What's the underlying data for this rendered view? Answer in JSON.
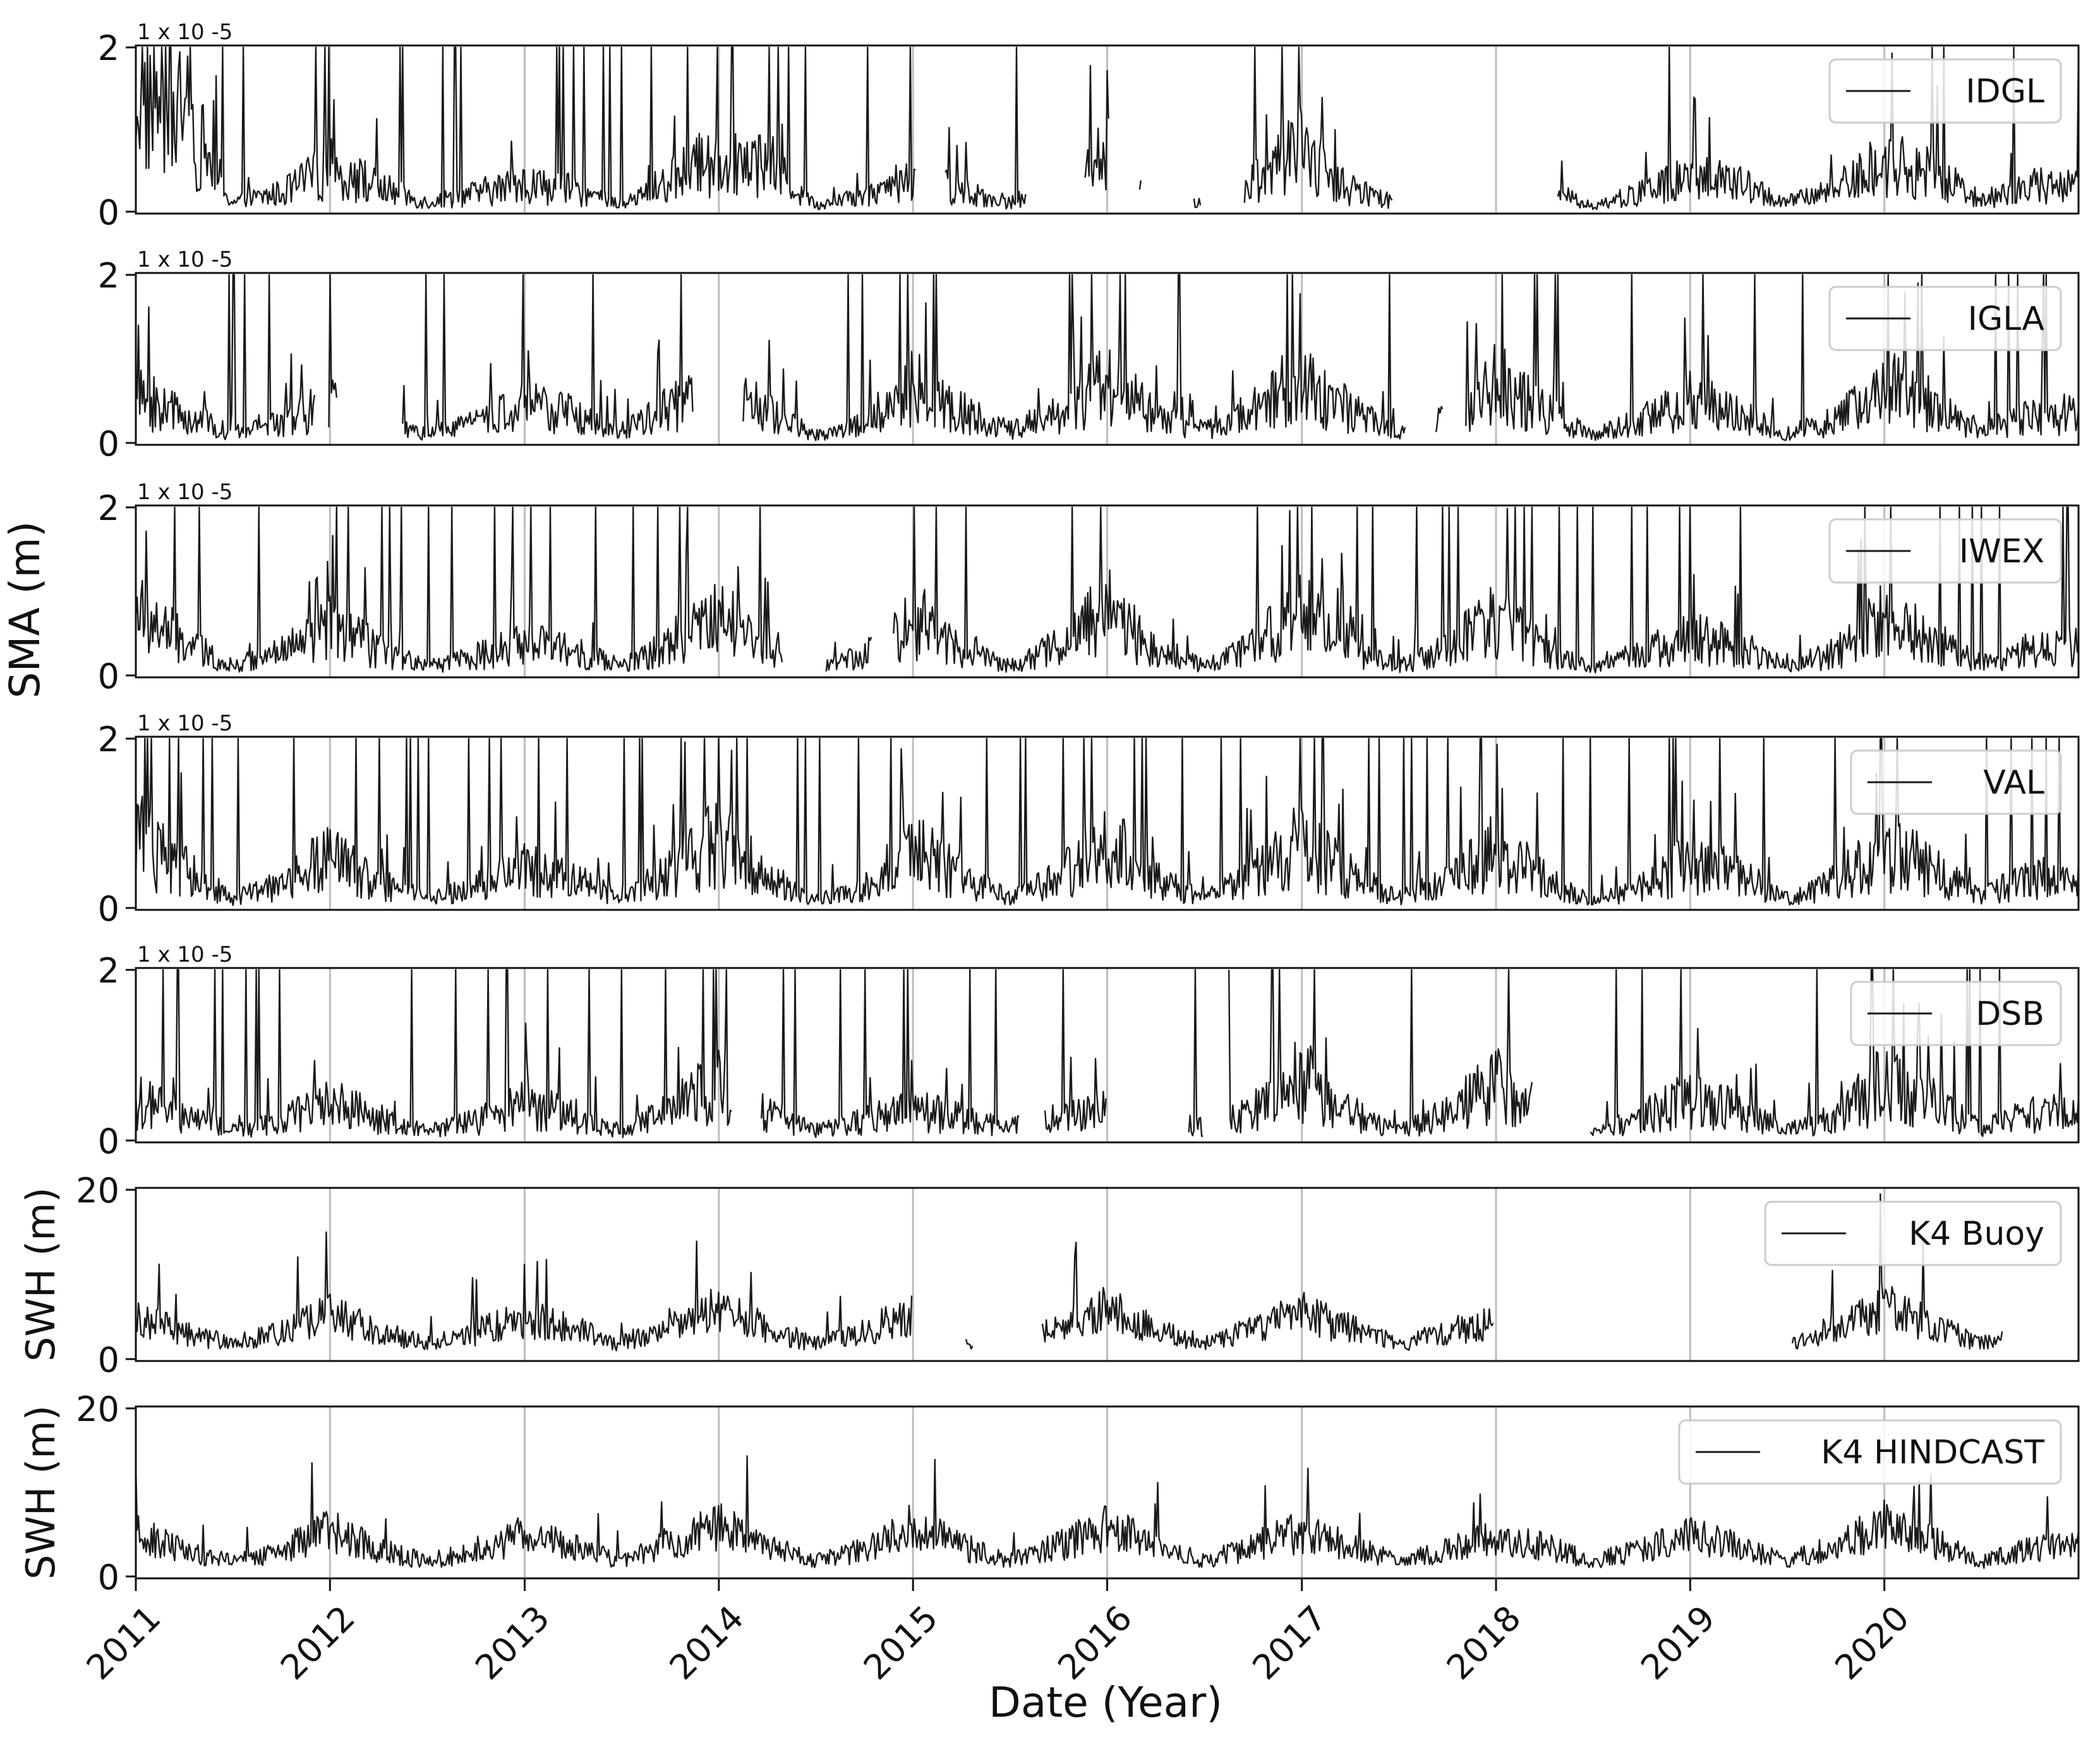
{
  "figure": {
    "xlabel": "Date (Year)",
    "year_ticks": [
      "2011",
      "2012",
      "2013",
      "2014",
      "2015",
      "2016",
      "2017",
      "2018",
      "2019",
      "2020"
    ],
    "sma_shared_ylabel": "SMA (m)"
  },
  "chart_data": [
    {
      "type": "line",
      "title": "",
      "xlabel": "",
      "ylabel": "",
      "multiplier_label": "1 x 10 -5",
      "ylim": [
        0,
        2
      ],
      "yticks": [
        "0",
        "2"
      ],
      "xlim": [
        "2011-01-01",
        "2020-12-31"
      ],
      "grid": "vertical-at-years",
      "legend_position": "top-right",
      "series": [
        {
          "name": "IDGL",
          "color": "#1a1a1a",
          "gaps": [
            [
              "2015-01-08",
              "2015-03-01"
            ],
            [
              "2015-08-01",
              "2015-11-20"
            ],
            [
              "2016-01-05",
              "2016-03-01"
            ],
            [
              "2016-03-05",
              "2016-06-10"
            ],
            [
              "2016-06-25",
              "2016-09-15"
            ],
            [
              "2017-06-20",
              "2018-04-25"
            ]
          ],
          "x": [
            "2011-01",
            "2011-04",
            "2011-07",
            "2011-10",
            "2012-01",
            "2012-04",
            "2012-07",
            "2012-10",
            "2013-01",
            "2013-04",
            "2013-07",
            "2013-10",
            "2014-01",
            "2014-04",
            "2014-07",
            "2014-10",
            "2015-01",
            "2015-04",
            "2015-07",
            "2015-10",
            "2016-01",
            "2016-04",
            "2016-07",
            "2016-10",
            "2017-01",
            "2017-04",
            "2017-07",
            "2017-10",
            "2018-01",
            "2018-04",
            "2018-07",
            "2018-10",
            "2019-01",
            "2019-04",
            "2019-07",
            "2019-10",
            "2020-01",
            "2020-04",
            "2020-07",
            "2020-10",
            "2020-12"
          ],
          "y": [
            2.0,
            1.6,
            0.15,
            0.3,
            0.7,
            0.4,
            0.15,
            0.3,
            0.45,
            0.35,
            0.12,
            0.5,
            0.9,
            0.8,
            0.1,
            0.25,
            0.6,
            0.35,
            0.15,
            0.35,
            0.9,
            0.2,
            0.15,
            0.5,
            1.0,
            0.35,
            0.15,
            0.3,
            0.5,
            0.35,
            0.1,
            0.3,
            0.55,
            0.45,
            0.15,
            0.35,
            0.8,
            0.6,
            0.2,
            0.4,
            0.45
          ]
        }
      ]
    },
    {
      "type": "line",
      "title": "",
      "xlabel": "",
      "ylabel": "",
      "multiplier_label": "1 x 10 -5",
      "ylim": [
        0,
        2
      ],
      "yticks": [
        "0",
        "2"
      ],
      "xlim": [
        "2011-01-01",
        "2020-12-31"
      ],
      "grid": "vertical-at-years",
      "legend_position": "top-right",
      "series": [
        {
          "name": "IGLA",
          "color": "#1a1a1a",
          "gaps": [
            [
              "2011-12-05",
              "2011-12-28"
            ],
            [
              "2012-01-15",
              "2012-05-15"
            ],
            [
              "2013-11-15",
              "2014-02-15"
            ],
            [
              "2017-07-15",
              "2017-09-10"
            ],
            [
              "2017-09-25",
              "2017-11-05"
            ]
          ],
          "x": [
            "2011-01",
            "2011-04",
            "2011-07",
            "2011-10",
            "2012-01",
            "2012-04",
            "2012-07",
            "2012-10",
            "2013-01",
            "2013-04",
            "2013-07",
            "2013-10",
            "2014-01",
            "2014-04",
            "2014-07",
            "2014-10",
            "2015-01",
            "2015-04",
            "2015-07",
            "2015-10",
            "2016-01",
            "2016-04",
            "2016-07",
            "2016-10",
            "2017-01",
            "2017-04",
            "2017-07",
            "2017-10",
            "2018-01",
            "2018-04",
            "2018-07",
            "2018-10",
            "2019-01",
            "2019-04",
            "2019-07",
            "2019-10",
            "2020-01",
            "2020-04",
            "2020-07",
            "2020-10",
            "2020-12"
          ],
          "y": [
            0.7,
            0.45,
            0.15,
            0.35,
            0.6,
            0.35,
            0.15,
            0.3,
            0.6,
            0.45,
            0.2,
            0.55,
            0.8,
            0.5,
            0.12,
            0.3,
            0.9,
            0.5,
            0.2,
            0.45,
            1.0,
            0.4,
            0.2,
            0.5,
            1.0,
            0.5,
            0.15,
            0.4,
            0.95,
            0.5,
            0.12,
            0.35,
            0.7,
            0.45,
            0.15,
            0.35,
            0.9,
            0.6,
            0.2,
            0.4,
            0.45
          ]
        }
      ]
    },
    {
      "type": "line",
      "title": "",
      "xlabel": "",
      "ylabel": "",
      "multiplier_label": "1 x 10 -5",
      "ylim": [
        0,
        2
      ],
      "yticks": [
        "0",
        "2"
      ],
      "xlim": [
        "2011-01-01",
        "2020-12-31"
      ],
      "grid": "vertical-at-years",
      "legend_position": "top-right",
      "series": [
        {
          "name": "IWEX",
          "color": "#1a1a1a",
          "gaps": [
            [
              "2014-05-01",
              "2014-07-20"
            ],
            [
              "2014-10-15",
              "2014-11-25"
            ]
          ],
          "x": [
            "2011-01",
            "2011-04",
            "2011-07",
            "2011-10",
            "2012-01",
            "2012-04",
            "2012-07",
            "2012-10",
            "2013-01",
            "2013-04",
            "2013-07",
            "2013-10",
            "2014-01",
            "2014-04",
            "2014-07",
            "2014-10",
            "2015-01",
            "2015-04",
            "2015-07",
            "2015-10",
            "2016-01",
            "2016-04",
            "2016-07",
            "2016-10",
            "2017-01",
            "2017-04",
            "2017-07",
            "2017-10",
            "2018-01",
            "2018-04",
            "2018-07",
            "2018-10",
            "2019-01",
            "2019-04",
            "2019-07",
            "2019-10",
            "2020-01",
            "2020-04",
            "2020-07",
            "2020-10",
            "2020-12"
          ],
          "y": [
            1.0,
            0.5,
            0.15,
            0.35,
            0.75,
            0.4,
            0.15,
            0.3,
            0.5,
            0.4,
            0.15,
            0.5,
            0.9,
            0.5,
            0.12,
            0.3,
            0.9,
            0.45,
            0.15,
            0.45,
            1.0,
            0.4,
            0.15,
            0.45,
            1.0,
            0.45,
            0.15,
            0.4,
            0.9,
            0.4,
            0.1,
            0.35,
            0.6,
            0.45,
            0.15,
            0.35,
            0.9,
            0.55,
            0.2,
            0.4,
            0.45
          ]
        }
      ]
    },
    {
      "type": "line",
      "title": "",
      "xlabel": "",
      "ylabel": "",
      "multiplier_label": "1 x 10 -5",
      "ylim": [
        0,
        2
      ],
      "yticks": [
        "0",
        "2"
      ],
      "xlim": [
        "2011-01-01",
        "2020-12-31"
      ],
      "grid": "vertical-at-years",
      "legend_position": "top-right",
      "series": [
        {
          "name": "VAL",
          "color": "#1a1a1a",
          "gaps": [],
          "x": [
            "2011-01",
            "2011-04",
            "2011-07",
            "2011-10",
            "2012-01",
            "2012-04",
            "2012-07",
            "2012-10",
            "2013-01",
            "2013-04",
            "2013-07",
            "2013-10",
            "2014-01",
            "2014-04",
            "2014-07",
            "2014-10",
            "2015-01",
            "2015-04",
            "2015-07",
            "2015-10",
            "2016-01",
            "2016-04",
            "2016-07",
            "2016-10",
            "2017-01",
            "2017-04",
            "2017-07",
            "2017-10",
            "2018-01",
            "2018-04",
            "2018-07",
            "2018-10",
            "2019-01",
            "2019-04",
            "2019-07",
            "2019-10",
            "2020-01",
            "2020-04",
            "2020-07",
            "2020-10",
            "2020-12"
          ],
          "y": [
            1.1,
            0.6,
            0.15,
            0.35,
            0.8,
            0.4,
            0.15,
            0.35,
            0.6,
            0.45,
            0.15,
            0.55,
            1.1,
            0.5,
            0.12,
            0.3,
            0.9,
            0.5,
            0.15,
            0.45,
            1.0,
            0.45,
            0.15,
            0.5,
            1.0,
            0.5,
            0.15,
            0.4,
            0.9,
            0.45,
            0.1,
            0.35,
            0.7,
            0.5,
            0.15,
            0.4,
            0.9,
            0.6,
            0.2,
            0.45,
            0.5
          ]
        }
      ]
    },
    {
      "type": "line",
      "title": "",
      "xlabel": "",
      "ylabel": "",
      "multiplier_label": "1 x 10 -5",
      "ylim": [
        0,
        2
      ],
      "yticks": [
        "0",
        "2"
      ],
      "xlim": [
        "2011-01-01",
        "2020-12-31"
      ],
      "grid": "vertical-at-years",
      "legend_position": "top-right",
      "series": [
        {
          "name": "DSB",
          "color": "#1a1a1a",
          "gaps": [
            [
              "2014-01-25",
              "2014-03-20"
            ],
            [
              "2015-07-20",
              "2015-09-05"
            ],
            [
              "2016-01-01",
              "2016-06-01"
            ],
            [
              "2016-07-01",
              "2016-08-15"
            ],
            [
              "2018-03-10",
              "2018-06-25"
            ]
          ],
          "x": [
            "2011-01",
            "2011-04",
            "2011-07",
            "2011-10",
            "2012-01",
            "2012-04",
            "2012-07",
            "2012-10",
            "2013-01",
            "2013-04",
            "2013-07",
            "2013-10",
            "2014-01",
            "2014-04",
            "2014-07",
            "2014-10",
            "2015-01",
            "2015-04",
            "2015-07",
            "2015-10",
            "2016-01",
            "2016-04",
            "2016-07",
            "2016-10",
            "2017-01",
            "2017-04",
            "2017-07",
            "2017-10",
            "2018-01",
            "2018-04",
            "2018-07",
            "2018-10",
            "2019-01",
            "2019-04",
            "2019-07",
            "2019-10",
            "2020-01",
            "2020-04",
            "2020-07",
            "2020-10",
            "2020-12"
          ],
          "y": [
            0.6,
            0.4,
            0.15,
            0.3,
            0.6,
            0.35,
            0.15,
            0.3,
            0.55,
            0.4,
            0.15,
            0.45,
            0.9,
            0.45,
            0.15,
            0.3,
            0.5,
            0.35,
            0.2,
            0.35,
            0.5,
            0.3,
            0.2,
            0.45,
            1.0,
            0.45,
            0.15,
            0.4,
            0.9,
            0.45,
            0.12,
            0.35,
            0.65,
            0.45,
            0.15,
            0.35,
            0.9,
            0.6,
            0.2,
            0.4,
            0.45
          ]
        }
      ]
    },
    {
      "type": "line",
      "title": "",
      "xlabel": "",
      "ylabel": "SWH (m)",
      "multiplier_label": "",
      "ylim": [
        0,
        20
      ],
      "yticks": [
        "0",
        "20"
      ],
      "xlim": [
        "2011-01-01",
        "2020-12-31"
      ],
      "grid": "vertical-at-years",
      "legend_position": "top-right",
      "series": [
        {
          "name": "K4 Buoy",
          "color": "#1a1a1a",
          "gaps": [
            [
              "2014-12-31",
              "2015-04-10"
            ],
            [
              "2015-04-25",
              "2015-09-01"
            ],
            [
              "2017-12-28",
              "2019-07-10"
            ],
            [
              "2020-08-10",
              "2020-12-31"
            ]
          ],
          "x": [
            "2011-01",
            "2011-04",
            "2011-07",
            "2011-10",
            "2012-01",
            "2012-04",
            "2012-07",
            "2012-10",
            "2013-01",
            "2013-04",
            "2013-07",
            "2013-10",
            "2014-01",
            "2014-04",
            "2014-07",
            "2014-10",
            "2015-01",
            "2015-04",
            "2015-07",
            "2015-10",
            "2016-01",
            "2016-04",
            "2016-07",
            "2016-10",
            "2017-01",
            "2017-04",
            "2017-07",
            "2017-10",
            "2018-01",
            "2018-04",
            "2018-07",
            "2018-10",
            "2019-01",
            "2019-04",
            "2019-07",
            "2019-10",
            "2020-01",
            "2020-04",
            "2020-07",
            "2020-10",
            "2020-12"
          ],
          "y": [
            5.5,
            3.5,
            2.0,
            3.5,
            6.0,
            3.5,
            2.0,
            3.5,
            5.5,
            4.0,
            2.0,
            4.5,
            6.5,
            4.0,
            2.0,
            3.5,
            6.0,
            2.0,
            2.0,
            4.0,
            6.5,
            4.0,
            2.0,
            4.0,
            6.0,
            4.0,
            2.0,
            3.5,
            5.0,
            3.5,
            2.0,
            3.5,
            5.0,
            4.0,
            2.0,
            4.0,
            7.0,
            4.5,
            2.0,
            3.5,
            4.0
          ]
        }
      ]
    },
    {
      "type": "line",
      "title": "",
      "xlabel": "",
      "ylabel": "SWH (m)",
      "multiplier_label": "",
      "ylim": [
        0,
        20
      ],
      "yticks": [
        "0",
        "20"
      ],
      "xlim": [
        "2011-01-01",
        "2020-12-31"
      ],
      "grid": "vertical-at-years",
      "legend_position": "top-right",
      "series": [
        {
          "name": "K4 HINDCAST",
          "color": "#1a1a1a",
          "gaps": [],
          "x": [
            "2011-01",
            "2011-04",
            "2011-07",
            "2011-10",
            "2012-01",
            "2012-04",
            "2012-07",
            "2012-10",
            "2013-01",
            "2013-04",
            "2013-07",
            "2013-10",
            "2014-01",
            "2014-04",
            "2014-07",
            "2014-10",
            "2015-01",
            "2015-04",
            "2015-07",
            "2015-10",
            "2016-01",
            "2016-04",
            "2016-07",
            "2016-10",
            "2017-01",
            "2017-04",
            "2017-07",
            "2017-10",
            "2018-01",
            "2018-04",
            "2018-07",
            "2018-10",
            "2019-01",
            "2019-04",
            "2019-07",
            "2019-10",
            "2020-01",
            "2020-04",
            "2020-07",
            "2020-10",
            "2020-12"
          ],
          "y": [
            5.5,
            3.5,
            2.0,
            3.5,
            6.0,
            3.5,
            2.0,
            3.5,
            5.5,
            4.0,
            2.0,
            4.5,
            6.5,
            4.0,
            2.0,
            3.5,
            6.5,
            4.0,
            2.0,
            4.0,
            6.5,
            4.0,
            2.0,
            4.0,
            6.0,
            4.0,
            2.0,
            3.5,
            5.5,
            4.0,
            2.0,
            3.5,
            5.5,
            4.0,
            2.0,
            4.0,
            7.0,
            4.5,
            2.0,
            3.5,
            4.5
          ]
        }
      ]
    }
  ]
}
